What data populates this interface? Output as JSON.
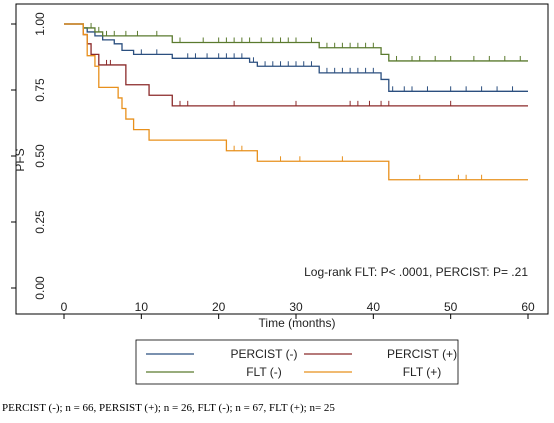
{
  "chart_data": {
    "type": "line",
    "subtype": "kaplan-meier step curves with censor marks",
    "xlabel": "Time (months)",
    "ylabel": "PFS",
    "xlim": [
      -2,
      60
    ],
    "ylim": [
      -0.02,
      1.02
    ],
    "x_ticks": [
      0,
      10,
      20,
      30,
      40,
      50,
      60
    ],
    "x_tick_labels": [
      "0",
      "10",
      "20",
      "30",
      "40",
      "50",
      "60"
    ],
    "y_ticks": [
      0,
      0.25,
      0.5,
      0.75,
      1.0
    ],
    "y_tick_labels": [
      "0.00",
      "0.25",
      "0.50",
      "0.75",
      "1.00"
    ],
    "grid": false,
    "annotation": "Log-rank FLT: P< .0001, PERCIST: P= .21",
    "legend_position": "bottom",
    "series": [
      {
        "name": "PERCIST (-)",
        "color": "#2b4f7f",
        "steps": [
          [
            0,
            1.0
          ],
          [
            2.5,
            0.985
          ],
          [
            3,
            0.97
          ],
          [
            4,
            0.955
          ],
          [
            5,
            0.94
          ],
          [
            6.5,
            0.925
          ],
          [
            7.5,
            0.9
          ],
          [
            9,
            0.885
          ],
          [
            14,
            0.87
          ],
          [
            24,
            0.855
          ],
          [
            25,
            0.84
          ],
          [
            33,
            0.815
          ],
          [
            41,
            0.79
          ],
          [
            42,
            0.745
          ],
          [
            60,
            0.745
          ]
        ],
        "censored": [
          [
            10,
            0.885
          ],
          [
            12,
            0.885
          ],
          [
            16,
            0.87
          ],
          [
            17,
            0.87
          ],
          [
            18.5,
            0.87
          ],
          [
            20,
            0.87
          ],
          [
            21,
            0.87
          ],
          [
            22,
            0.87
          ],
          [
            23,
            0.87
          ],
          [
            24.5,
            0.855
          ],
          [
            26,
            0.84
          ],
          [
            27,
            0.84
          ],
          [
            28,
            0.84
          ],
          [
            29,
            0.84
          ],
          [
            30,
            0.84
          ],
          [
            31,
            0.84
          ],
          [
            32,
            0.84
          ],
          [
            34,
            0.815
          ],
          [
            35,
            0.815
          ],
          [
            36,
            0.815
          ],
          [
            37,
            0.815
          ],
          [
            38,
            0.815
          ],
          [
            39,
            0.815
          ],
          [
            40,
            0.815
          ],
          [
            42.5,
            0.745
          ],
          [
            44,
            0.745
          ],
          [
            45,
            0.745
          ],
          [
            47,
            0.745
          ],
          [
            50,
            0.745
          ],
          [
            52,
            0.745
          ],
          [
            54,
            0.745
          ],
          [
            56,
            0.745
          ],
          [
            58,
            0.745
          ]
        ]
      },
      {
        "name": "PERCIST (+)",
        "color": "#8b2a2a",
        "steps": [
          [
            0,
            1.0
          ],
          [
            2.5,
            0.96
          ],
          [
            3,
            0.925
          ],
          [
            3.5,
            0.885
          ],
          [
            4.5,
            0.845
          ],
          [
            8,
            0.77
          ],
          [
            10,
            0.77
          ],
          [
            11,
            0.73
          ],
          [
            14,
            0.69
          ],
          [
            60,
            0.69
          ]
        ],
        "censored": [
          [
            5.5,
            0.845
          ],
          [
            6,
            0.845
          ],
          [
            15,
            0.69
          ],
          [
            16,
            0.69
          ],
          [
            22,
            0.69
          ],
          [
            30,
            0.69
          ],
          [
            37,
            0.69
          ],
          [
            38,
            0.69
          ],
          [
            39.5,
            0.69
          ],
          [
            41,
            0.69
          ],
          [
            42,
            0.69
          ],
          [
            50,
            0.69
          ]
        ]
      },
      {
        "name": "FLT (-)",
        "color": "#5a7a2e",
        "steps": [
          [
            0,
            1.0
          ],
          [
            2.5,
            0.985
          ],
          [
            4,
            0.97
          ],
          [
            5,
            0.955
          ],
          [
            14,
            0.93
          ],
          [
            33,
            0.91
          ],
          [
            41,
            0.885
          ],
          [
            42,
            0.86
          ],
          [
            60,
            0.86
          ]
        ],
        "censored": [
          [
            3.5,
            0.985
          ],
          [
            4.5,
            0.97
          ],
          [
            5.5,
            0.955
          ],
          [
            6.5,
            0.955
          ],
          [
            8,
            0.955
          ],
          [
            9.5,
            0.955
          ],
          [
            12,
            0.955
          ],
          [
            15,
            0.93
          ],
          [
            18,
            0.93
          ],
          [
            20,
            0.93
          ],
          [
            21,
            0.93
          ],
          [
            22,
            0.93
          ],
          [
            23,
            0.93
          ],
          [
            24,
            0.93
          ],
          [
            25.5,
            0.93
          ],
          [
            27,
            0.93
          ],
          [
            28,
            0.93
          ],
          [
            29,
            0.93
          ],
          [
            30,
            0.93
          ],
          [
            32,
            0.93
          ],
          [
            34,
            0.91
          ],
          [
            35,
            0.91
          ],
          [
            36,
            0.91
          ],
          [
            37,
            0.91
          ],
          [
            38,
            0.91
          ],
          [
            39,
            0.91
          ],
          [
            40,
            0.91
          ],
          [
            43,
            0.86
          ],
          [
            45,
            0.86
          ],
          [
            46,
            0.86
          ],
          [
            48,
            0.86
          ],
          [
            50,
            0.86
          ],
          [
            53,
            0.86
          ],
          [
            55,
            0.86
          ],
          [
            57,
            0.86
          ],
          [
            59,
            0.86
          ]
        ]
      },
      {
        "name": "FLT (+)",
        "color": "#e8901c",
        "steps": [
          [
            0,
            1.0
          ],
          [
            2.5,
            0.96
          ],
          [
            3,
            0.88
          ],
          [
            4,
            0.84
          ],
          [
            4.5,
            0.76
          ],
          [
            7,
            0.72
          ],
          [
            7.5,
            0.68
          ],
          [
            8,
            0.64
          ],
          [
            9,
            0.6
          ],
          [
            11,
            0.56
          ],
          [
            21,
            0.52
          ],
          [
            25,
            0.48
          ],
          [
            42,
            0.41
          ],
          [
            60,
            0.41
          ]
        ],
        "censored": [
          [
            22,
            0.52
          ],
          [
            23,
            0.52
          ],
          [
            28,
            0.48
          ],
          [
            30.5,
            0.48
          ],
          [
            36,
            0.48
          ],
          [
            46,
            0.41
          ],
          [
            51,
            0.41
          ],
          [
            52,
            0.41
          ],
          [
            54,
            0.41
          ]
        ]
      }
    ]
  },
  "caption": "PERCIST (-); n = 66, PERSIST (+); n = 26, FLT (-); n = 67, FLT (+); n= 25"
}
